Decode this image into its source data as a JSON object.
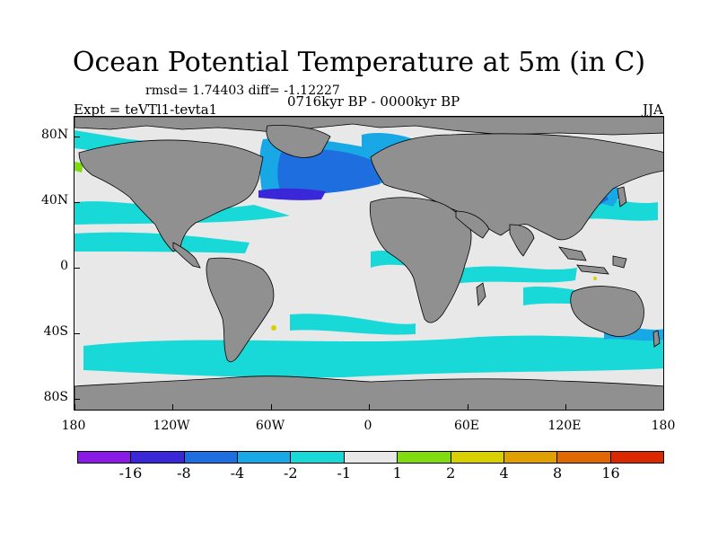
{
  "title": "Ocean Potential Temperature at 5m (in C)",
  "stats": "rmsd= 1.74403 diff= -1.12227",
  "period": "0716kyr BP - 0000kyr BP",
  "experiment": "Expt = teVTl1-tevta1",
  "season": "JJA",
  "y_ticks": [
    "80N",
    "40N",
    "0",
    "40S",
    "80S"
  ],
  "x_ticks": [
    "180",
    "120W",
    "60W",
    "0",
    "60E",
    "120E",
    "180"
  ],
  "legend": {
    "levels": [
      "-16",
      "-8",
      "-4",
      "-2",
      "-1",
      "1",
      "2",
      "4",
      "8",
      "16"
    ],
    "colors": [
      "#8a1ae6",
      "#3a28d8",
      "#1e6ee0",
      "#18a8e6",
      "#18d8d8",
      "#e8e8e8",
      "#80dc10",
      "#d8d000",
      "#e0a000",
      "#e06800",
      "#dc2800"
    ]
  },
  "colors": {
    "land": "#909090",
    "no_change": "#e8e8e8",
    "cool_weak": "#18d8d8",
    "cool_mid": "#18a8e6",
    "cool_strong": "#1e6ee0",
    "cool_extreme": "#3a28d8",
    "warm_weak": "#80dc10",
    "warm_mid": "#d8d000"
  }
}
